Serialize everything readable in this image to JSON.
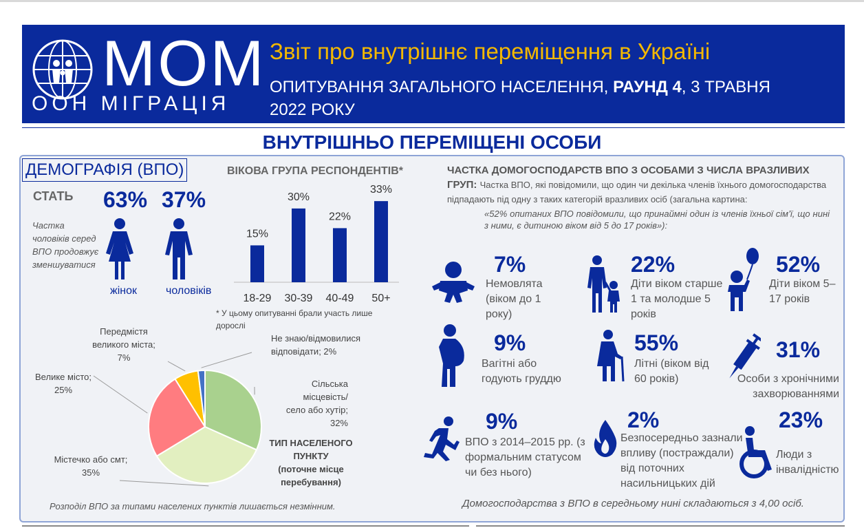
{
  "header": {
    "logo_word": "МОМ",
    "logo_sub": "ООН МІГРАЦІЯ",
    "title": "Звіт про внутрішнє переміщення в Україні",
    "subtitle_part1": "ОПИТУВАННЯ ЗАГАЛЬНОГО НАСЕЛЕННЯ, ",
    "subtitle_bold": "РАУНД 4",
    "subtitle_part2": ", 3 ТРАВНЯ 2022 РОКУ",
    "colors": {
      "banner": "#0a2a9c",
      "title": "#f3b800"
    }
  },
  "section_title": "ВНУТРІШНЬО ПЕРЕМІЩЕНІ ОСОБИ",
  "demography": {
    "heading": "ДЕМОГРАФІЯ (ВПО)",
    "sex_label": "СТАТЬ",
    "women_pct": "63%",
    "men_pct": "37%",
    "women_label": "жінок",
    "men_label": "чоловіків",
    "note": "Частка чоловіків серед ВПО продовжує зменшуватися",
    "women_icon": "woman-icon",
    "men_icon": "man-icon"
  },
  "age": {
    "title": "ВІКОВА ГРУПА РЕСПОНДЕНТІВ*",
    "note": "* У цьому опитуванні брали участь лише дорослі"
  },
  "chart_data": [
    {
      "type": "bar",
      "categories": [
        "18-29",
        "30-39",
        "40-49",
        "50+"
      ],
      "values": [
        15,
        30,
        22,
        33
      ],
      "labels": [
        "15%",
        "30%",
        "22%",
        "33%"
      ],
      "title": "ВІКОВА ГРУПА РЕСПОНДЕНТІВ*",
      "color": "#0a2a9c",
      "ylim": [
        0,
        35
      ]
    },
    {
      "type": "pie",
      "title": "ТИП НАСЕЛЕНОГО ПУНКТУ (поточне місце перебування)",
      "slices": [
        {
          "name": "Сільська місцевість/ село або хутір;",
          "value": 32,
          "label": "32%",
          "color": "#a9d18e"
        },
        {
          "name": "Містечко або смт;",
          "value": 35,
          "label": "35%",
          "color": "#e2efc0"
        },
        {
          "name": "Велике місто;",
          "value": 25,
          "label": "25%",
          "color": "#ff7c80"
        },
        {
          "name": "Передмістя великого міста;",
          "value": 7,
          "label": "7%",
          "color": "#ffc000"
        },
        {
          "name": "Не знаю/відмовилися відповідати;",
          "value": 2,
          "label": "2%",
          "color": "#4472c4"
        }
      ]
    }
  ],
  "settlement": {
    "title_line1": "ТИП НАСЕЛЕНОГО ПУНКТУ",
    "title_line2": "(поточне місце перебування)",
    "note": "Розподіл ВПО за типами населених пунктів лишається незмінним."
  },
  "vulnerable": {
    "title": "ЧАСТКА ДОМОГОСПОДАРСТВ ВПО З ОСОБАМИ З ЧИСЛА ВРАЗЛИВИХ ГРУП:",
    "desc": "Частка ВПО, які повідомили, що один чи декілька членів їхнього домогосподарства підпадають під одну з таких категорій вразливих осіб (загальна картина:",
    "desc_italic": "«52% опитаних ВПО повідомили, що принаймні один із членів їхньої сім’ї, що нині з ними, є дитиною віком від 5 до 17 років»):",
    "items": [
      {
        "pct": "7%",
        "text": "Немовлята (віком до 1 року)",
        "icon": "baby-icon"
      },
      {
        "pct": "22%",
        "text": "Діти віком старше 1 та молодше 5 років",
        "icon": "parent-child-icon"
      },
      {
        "pct": "52%",
        "text": "Діти віком 5–17 років",
        "icon": "child-balloon-icon"
      },
      {
        "pct": "9%",
        "text": "Вагітні або годують груддю",
        "icon": "pregnant-icon"
      },
      {
        "pct": "55%",
        "text": "Літні (віком від 60 років)",
        "icon": "elderly-icon"
      },
      {
        "pct": "31%",
        "text": "Особи з хронічними захворюваннями",
        "icon": "syringe-icon"
      },
      {
        "pct": "9%",
        "text": "ВПО з 2014–2015 рр. (з формальним статусом чи без нього)",
        "icon": "running-person-icon"
      },
      {
        "pct": "2%",
        "text": "Безпосередньо зазнали впливу (постраждали) від поточних насильницьких дій",
        "icon": "flame-icon"
      },
      {
        "pct": "23%",
        "text": "Люди з інвалідністю",
        "icon": "wheelchair-icon"
      }
    ],
    "household_note": "Домогосподарства з ВПО в середньому нині складаються з 4,00 осіб."
  }
}
